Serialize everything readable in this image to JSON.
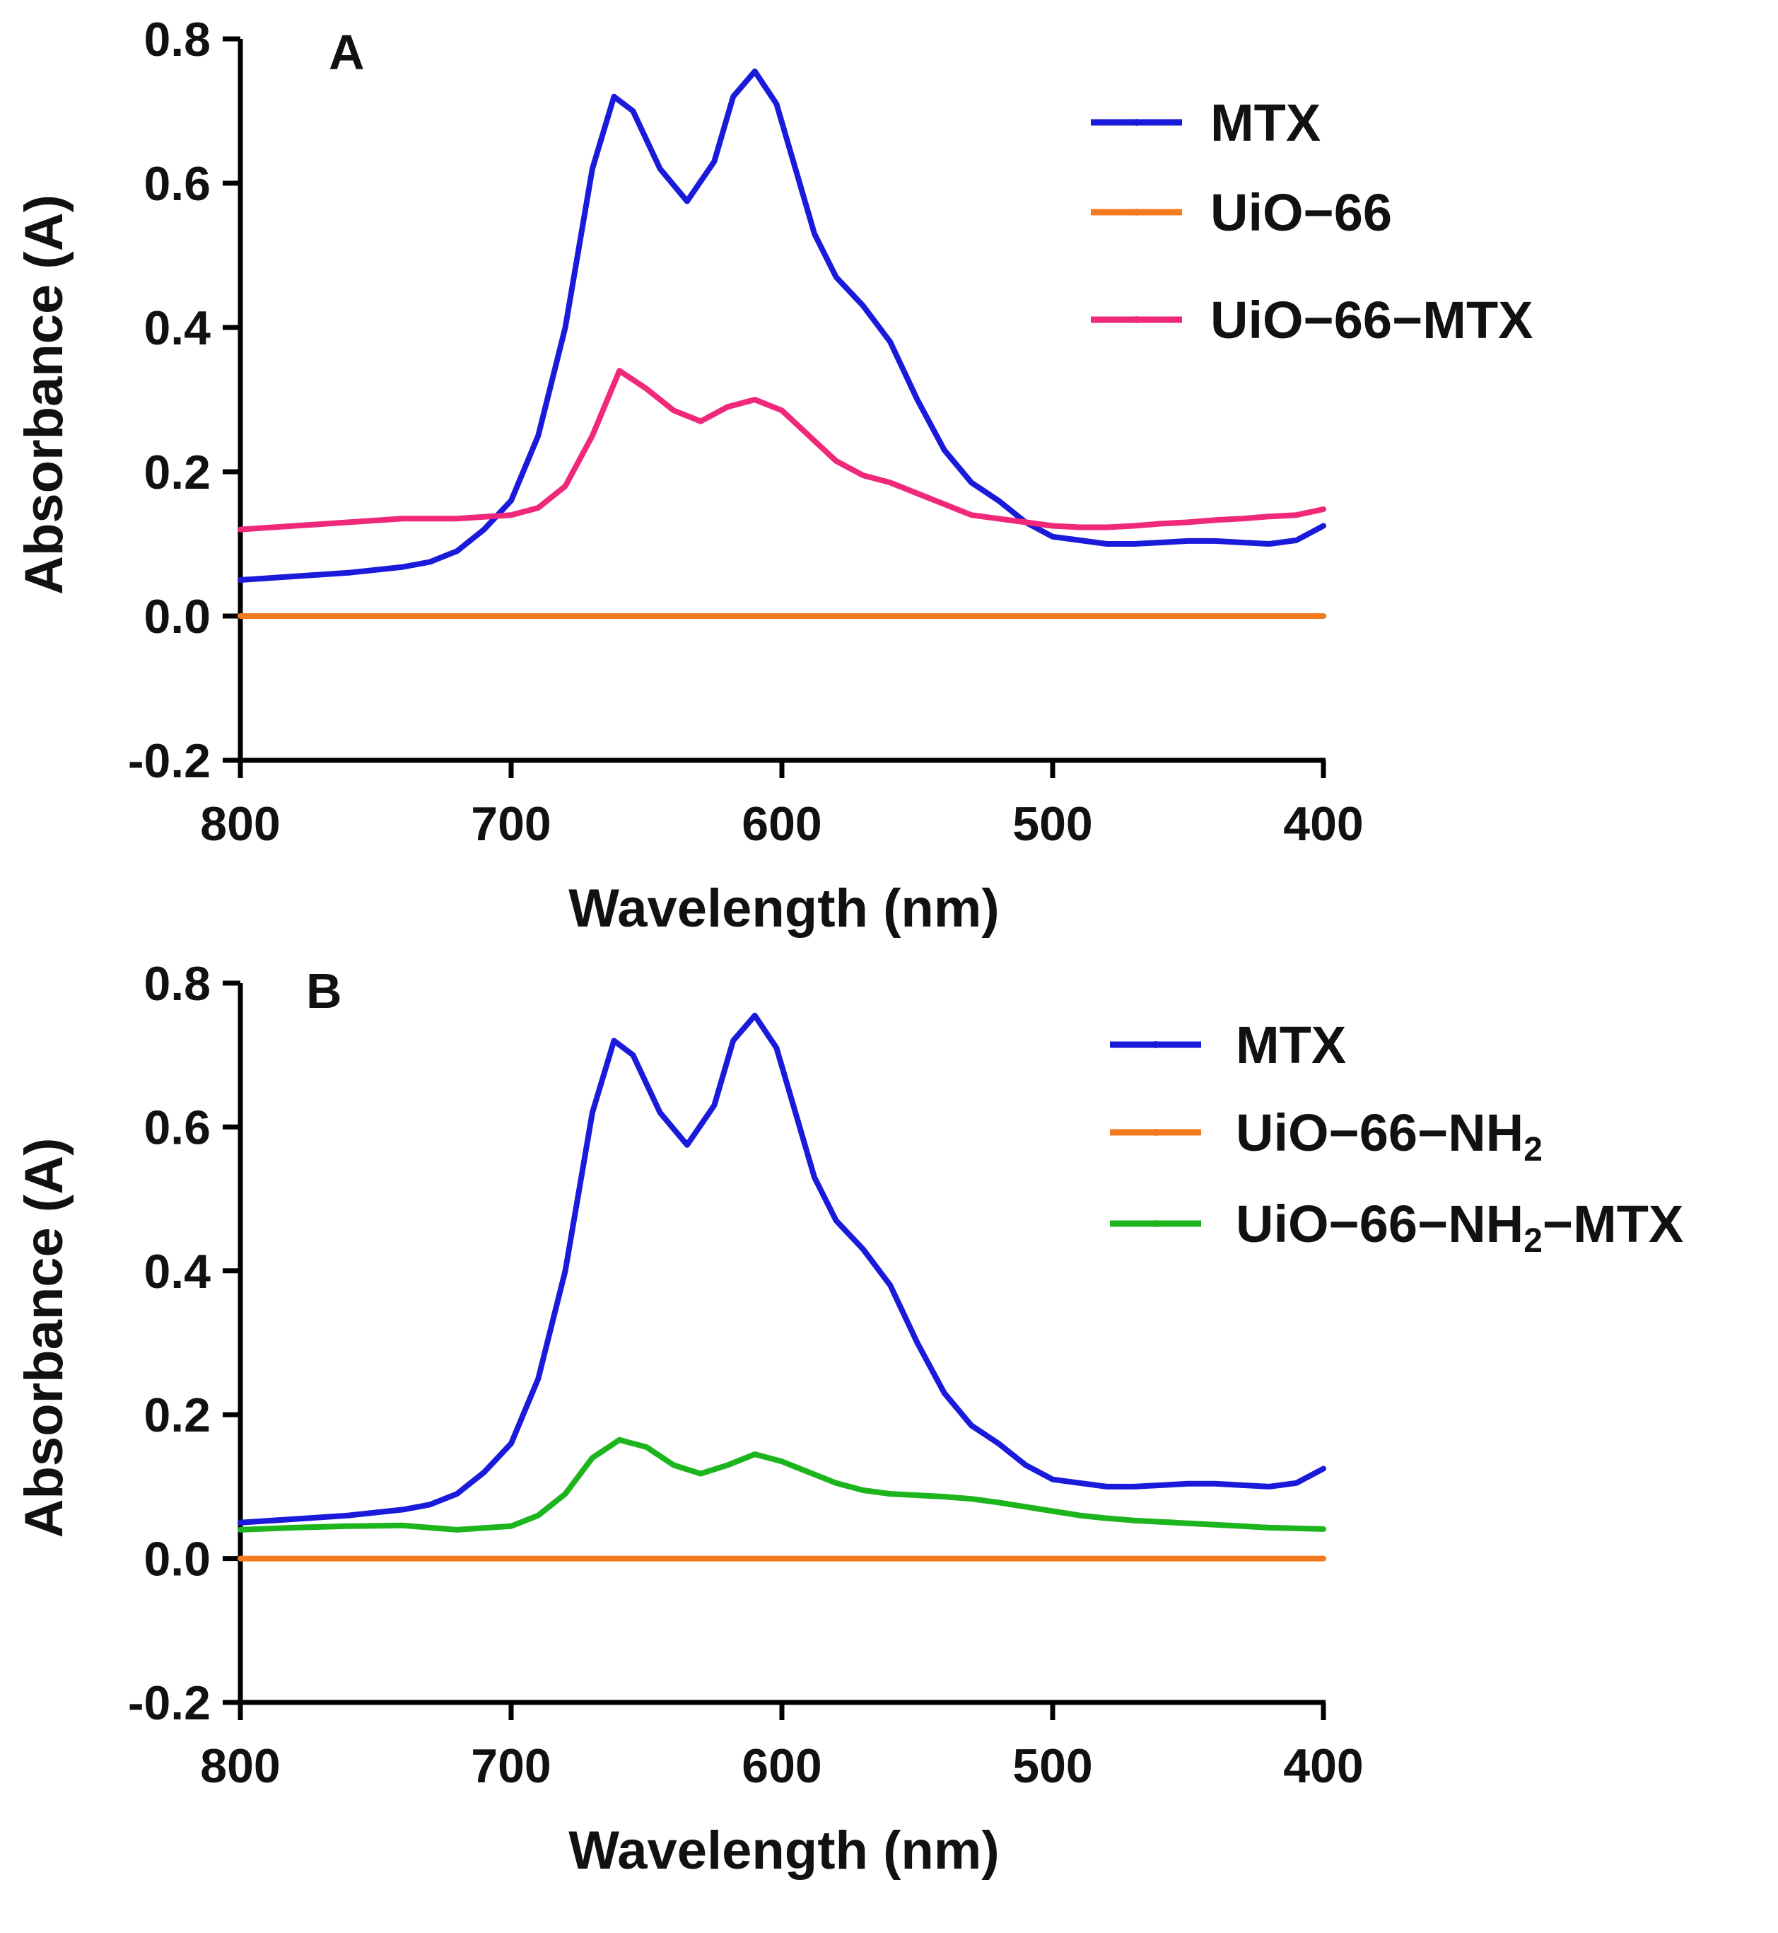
{
  "chart_data": [
    {
      "type": "line",
      "panel_label": "A",
      "xlabel": "Wavelength (nm)",
      "ylabel": "Absorbance (A)",
      "xlim": [
        800,
        400
      ],
      "x_reversed": true,
      "ylim": [
        -0.2,
        0.8
      ],
      "xticks": [
        800,
        700,
        600,
        500,
        400
      ],
      "xtick_labels": [
        "800",
        "700",
        "600",
        "500",
        "400"
      ],
      "yticks": [
        -0.2,
        0.0,
        0.2,
        0.4,
        0.6,
        0.8
      ],
      "ytick_labels": [
        "-0.2",
        "0.0",
        "0.2",
        "0.4",
        "0.6",
        "0.8"
      ],
      "grid": false,
      "legend_position": "top-right",
      "series": [
        {
          "name": "MTX",
          "color": "#1a1adb",
          "x": [
            800,
            780,
            760,
            740,
            730,
            720,
            710,
            700,
            690,
            680,
            670,
            662,
            655,
            645,
            635,
            625,
            618,
            610,
            602,
            595,
            588,
            580,
            570,
            560,
            550,
            540,
            530,
            520,
            510,
            500,
            490,
            480,
            470,
            460,
            450,
            440,
            430,
            420,
            410,
            400
          ],
          "y": [
            0.05,
            0.055,
            0.06,
            0.068,
            0.075,
            0.09,
            0.12,
            0.16,
            0.25,
            0.4,
            0.62,
            0.72,
            0.7,
            0.62,
            0.575,
            0.63,
            0.72,
            0.755,
            0.71,
            0.62,
            0.53,
            0.47,
            0.43,
            0.38,
            0.3,
            0.23,
            0.185,
            0.16,
            0.13,
            0.11,
            0.105,
            0.1,
            0.1,
            0.102,
            0.104,
            0.104,
            0.102,
            0.1,
            0.105,
            0.125
          ]
        },
        {
          "name": "UiO-66",
          "color": "#f47a20",
          "x": [
            800,
            400
          ],
          "y": [
            0.0,
            0.0
          ]
        },
        {
          "name": "UiO-66-MTX",
          "color": "#f0287a",
          "x": [
            800,
            780,
            760,
            740,
            720,
            700,
            690,
            680,
            670,
            660,
            650,
            640,
            630,
            620,
            610,
            600,
            590,
            580,
            570,
            560,
            550,
            540,
            530,
            520,
            510,
            500,
            490,
            480,
            470,
            460,
            450,
            440,
            430,
            420,
            410,
            400
          ],
          "y": [
            0.12,
            0.125,
            0.13,
            0.135,
            0.135,
            0.14,
            0.15,
            0.18,
            0.25,
            0.34,
            0.315,
            0.285,
            0.27,
            0.29,
            0.3,
            0.285,
            0.25,
            0.215,
            0.195,
            0.185,
            0.17,
            0.155,
            0.14,
            0.135,
            0.13,
            0.125,
            0.123,
            0.123,
            0.125,
            0.128,
            0.13,
            0.133,
            0.135,
            0.138,
            0.14,
            0.148
          ]
        }
      ],
      "legend_entries": [
        {
          "text": "MTX",
          "sub": "",
          "suffix": ""
        },
        {
          "text": "UiO−66",
          "sub": "",
          "suffix": ""
        },
        {
          "text": "UiO−66−MTX",
          "sub": "",
          "suffix": ""
        }
      ]
    },
    {
      "type": "line",
      "panel_label": "B",
      "xlabel": "Wavelength (nm)",
      "ylabel": "Absorbance (A)",
      "xlim": [
        800,
        400
      ],
      "x_reversed": true,
      "ylim": [
        -0.2,
        0.8
      ],
      "xticks": [
        800,
        700,
        600,
        500,
        400
      ],
      "xtick_labels": [
        "800",
        "700",
        "600",
        "500",
        "400"
      ],
      "yticks": [
        -0.2,
        0.0,
        0.2,
        0.4,
        0.6,
        0.8
      ],
      "ytick_labels": [
        "-0.2",
        "0.0",
        "0.2",
        "0.4",
        "0.6",
        "0.8"
      ],
      "grid": false,
      "legend_position": "top-right",
      "series": [
        {
          "name": "MTX",
          "color": "#1a1adb",
          "x": [
            800,
            780,
            760,
            740,
            730,
            720,
            710,
            700,
            690,
            680,
            670,
            662,
            655,
            645,
            635,
            625,
            618,
            610,
            602,
            595,
            588,
            580,
            570,
            560,
            550,
            540,
            530,
            520,
            510,
            500,
            490,
            480,
            470,
            460,
            450,
            440,
            430,
            420,
            410,
            400
          ],
          "y": [
            0.05,
            0.055,
            0.06,
            0.068,
            0.075,
            0.09,
            0.12,
            0.16,
            0.25,
            0.4,
            0.62,
            0.72,
            0.7,
            0.62,
            0.575,
            0.63,
            0.72,
            0.755,
            0.71,
            0.62,
            0.53,
            0.47,
            0.43,
            0.38,
            0.3,
            0.23,
            0.185,
            0.16,
            0.13,
            0.11,
            0.105,
            0.1,
            0.1,
            0.102,
            0.104,
            0.104,
            0.102,
            0.1,
            0.105,
            0.125
          ]
        },
        {
          "name": "UiO-66-NH2",
          "color": "#f47a20",
          "x": [
            800,
            400
          ],
          "y": [
            0.0,
            0.0
          ]
        },
        {
          "name": "UiO-66-NH2-MTX",
          "color": "#1db51d",
          "x": [
            800,
            780,
            760,
            740,
            720,
            700,
            690,
            680,
            670,
            660,
            650,
            640,
            630,
            620,
            610,
            600,
            590,
            580,
            570,
            560,
            550,
            540,
            530,
            520,
            510,
            500,
            490,
            480,
            470,
            460,
            450,
            440,
            430,
            420,
            410,
            400
          ],
          "y": [
            0.04,
            0.043,
            0.045,
            0.046,
            0.04,
            0.045,
            0.06,
            0.09,
            0.14,
            0.165,
            0.155,
            0.13,
            0.118,
            0.13,
            0.145,
            0.135,
            0.12,
            0.105,
            0.095,
            0.09,
            0.088,
            0.086,
            0.083,
            0.078,
            0.072,
            0.066,
            0.06,
            0.056,
            0.053,
            0.051,
            0.049,
            0.047,
            0.045,
            0.043,
            0.042,
            0.041
          ]
        }
      ],
      "legend_entries": [
        {
          "text": "MTX",
          "sub": "",
          "suffix": ""
        },
        {
          "text": "UiO−66−NH",
          "sub": "2",
          "suffix": ""
        },
        {
          "text": "UiO−66−NH",
          "sub": "2",
          "suffix": "−MTX"
        }
      ]
    }
  ]
}
